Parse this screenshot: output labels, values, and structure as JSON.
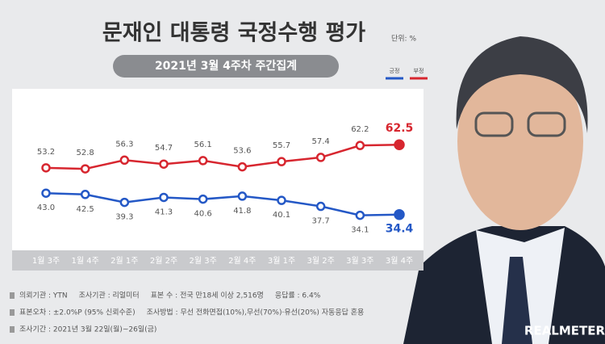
{
  "chart_data": {
    "type": "line",
    "title": "문재인 대통령 국정수행 평가",
    "unit": "단위: %",
    "subtitle": "2021년 3월 4주차 주간집계",
    "categories": [
      "1월 3주",
      "1월 4주",
      "2월 1주",
      "2월 2주",
      "2월 3주",
      "2월 4주",
      "3월 1주",
      "3월 2주",
      "3월 3주",
      "3월 4주"
    ],
    "series": [
      {
        "name": "긍정",
        "color": "#2458c6",
        "values": [
          43.0,
          42.5,
          39.3,
          41.3,
          40.6,
          41.8,
          40.1,
          37.7,
          34.1,
          34.4
        ],
        "value_labels": [
          "43.0",
          "42.5",
          "39.3",
          "41.3",
          "40.6",
          "41.8",
          "40.1",
          "37.7",
          "34.1",
          "34.4"
        ]
      },
      {
        "name": "부정",
        "color": "#d7262f",
        "values": [
          53.2,
          52.8,
          56.3,
          54.7,
          56.1,
          53.6,
          55.7,
          57.4,
          62.2,
          62.5
        ],
        "value_labels": [
          "53.2",
          "52.8",
          "56.3",
          "54.7",
          "56.1",
          "53.6",
          "55.7",
          "57.4",
          "62.2",
          "62.5"
        ]
      }
    ],
    "ylim": [
      20,
      85
    ],
    "notes": [
      "의뢰기관 : YTN",
      "조사기관 : 리얼미터",
      "표본 수 : 전국 만18세 이상 2,516명",
      "응답률 : 6.4%",
      "표본오차 : ±2.0%P (95% 신뢰수준)",
      "조사방법 : 무선 전화면접(10%),무선(70%)·유선(20%) 자동응답 혼용",
      "조사기간 : 2021년 3월 22일(월)~26일(금)"
    ],
    "logo": "REALMETER"
  }
}
